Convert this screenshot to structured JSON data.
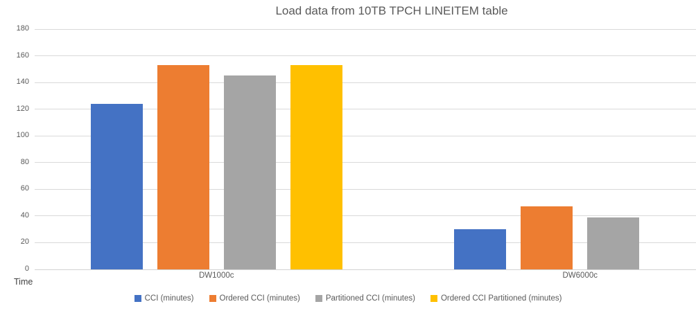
{
  "chart_data": {
    "type": "bar",
    "title": "Load data from 10TB TPCH LINEITEM table",
    "categories": [
      "DW1000c",
      "DW6000c"
    ],
    "series": [
      {
        "name": "CCI (minutes)",
        "color": "#4472C4",
        "values": [
          124,
          30
        ]
      },
      {
        "name": "Ordered CCI (minutes)",
        "color": "#ED7D31",
        "values": [
          153,
          47
        ]
      },
      {
        "name": "Partitioned CCI (minutes)",
        "color": "#A5A5A5",
        "values": [
          145,
          39
        ]
      },
      {
        "name": "Ordered CCI Partitioned (minutes)",
        "color": "#FFC000",
        "values": [
          153,
          null
        ]
      }
    ],
    "xlabel": "",
    "ylabel": "Time",
    "ylim": [
      0,
      180
    ],
    "ytick_step": 20,
    "y_tick_labels": [
      "0",
      "20",
      "40",
      "60",
      "80",
      "100",
      "120",
      "140",
      "160",
      "180"
    ],
    "grid": true,
    "legend_position": "bottom",
    "colors": {
      "gridline": "#d9d9d9",
      "axis_text": "#595959",
      "title_text": "#595959"
    }
  }
}
